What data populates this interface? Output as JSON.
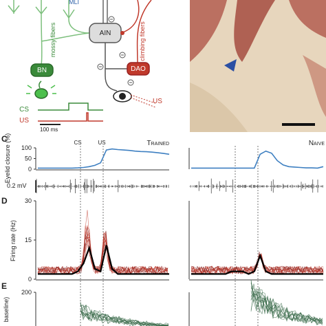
{
  "diagram": {
    "mli": "MLI",
    "mossy": "mossy fibers",
    "ain": "AIN",
    "climbing": "climbing fibers",
    "bn": "BN",
    "dao": "DAO",
    "us_eye": "US",
    "cs": "CS",
    "us": "US",
    "scale": "100 ms"
  },
  "panels": {
    "C": {
      "letter": "C",
      "cs": "CS",
      "us": "US",
      "trained": "Trained",
      "naive": "Naive",
      "ylabel": "Eyelid closure (%)",
      "scale_label": "0.2 mV",
      "ylim": [
        0,
        100
      ],
      "yticks": [
        0,
        50,
        100
      ],
      "trained_values": [
        5,
        5,
        5,
        5,
        5,
        5,
        5,
        6,
        8,
        12,
        18,
        30,
        90,
        95,
        92,
        90,
        88,
        85,
        83,
        82,
        80,
        77,
        74,
        70
      ],
      "naive_values": [
        5,
        5,
        5,
        5,
        5,
        5,
        5,
        5,
        5,
        5,
        5,
        5,
        70,
        85,
        75,
        40,
        20,
        12,
        10,
        8,
        6,
        6,
        5,
        12
      ]
    },
    "D": {
      "letter": "D",
      "ylabel": "Firing rate (Hz)",
      "ylim": [
        0,
        30
      ],
      "yticks": [
        0,
        15,
        30
      ],
      "trained_values": [
        2,
        2,
        2,
        2,
        2,
        2,
        2,
        3,
        6,
        12,
        4,
        3,
        13,
        4,
        2,
        2,
        2,
        2,
        2,
        2,
        2,
        2,
        2,
        2
      ],
      "naive_values": [
        2,
        2,
        2,
        2,
        2,
        2,
        2,
        3,
        3,
        3,
        2,
        3,
        9,
        3,
        2,
        2,
        2,
        2,
        2,
        2,
        2,
        2,
        2,
        2
      ]
    },
    "E": {
      "letter": "E",
      "ylabel": "baseline)",
      "ylim": [
        100,
        200
      ],
      "yticks": [
        200
      ]
    }
  }
}
